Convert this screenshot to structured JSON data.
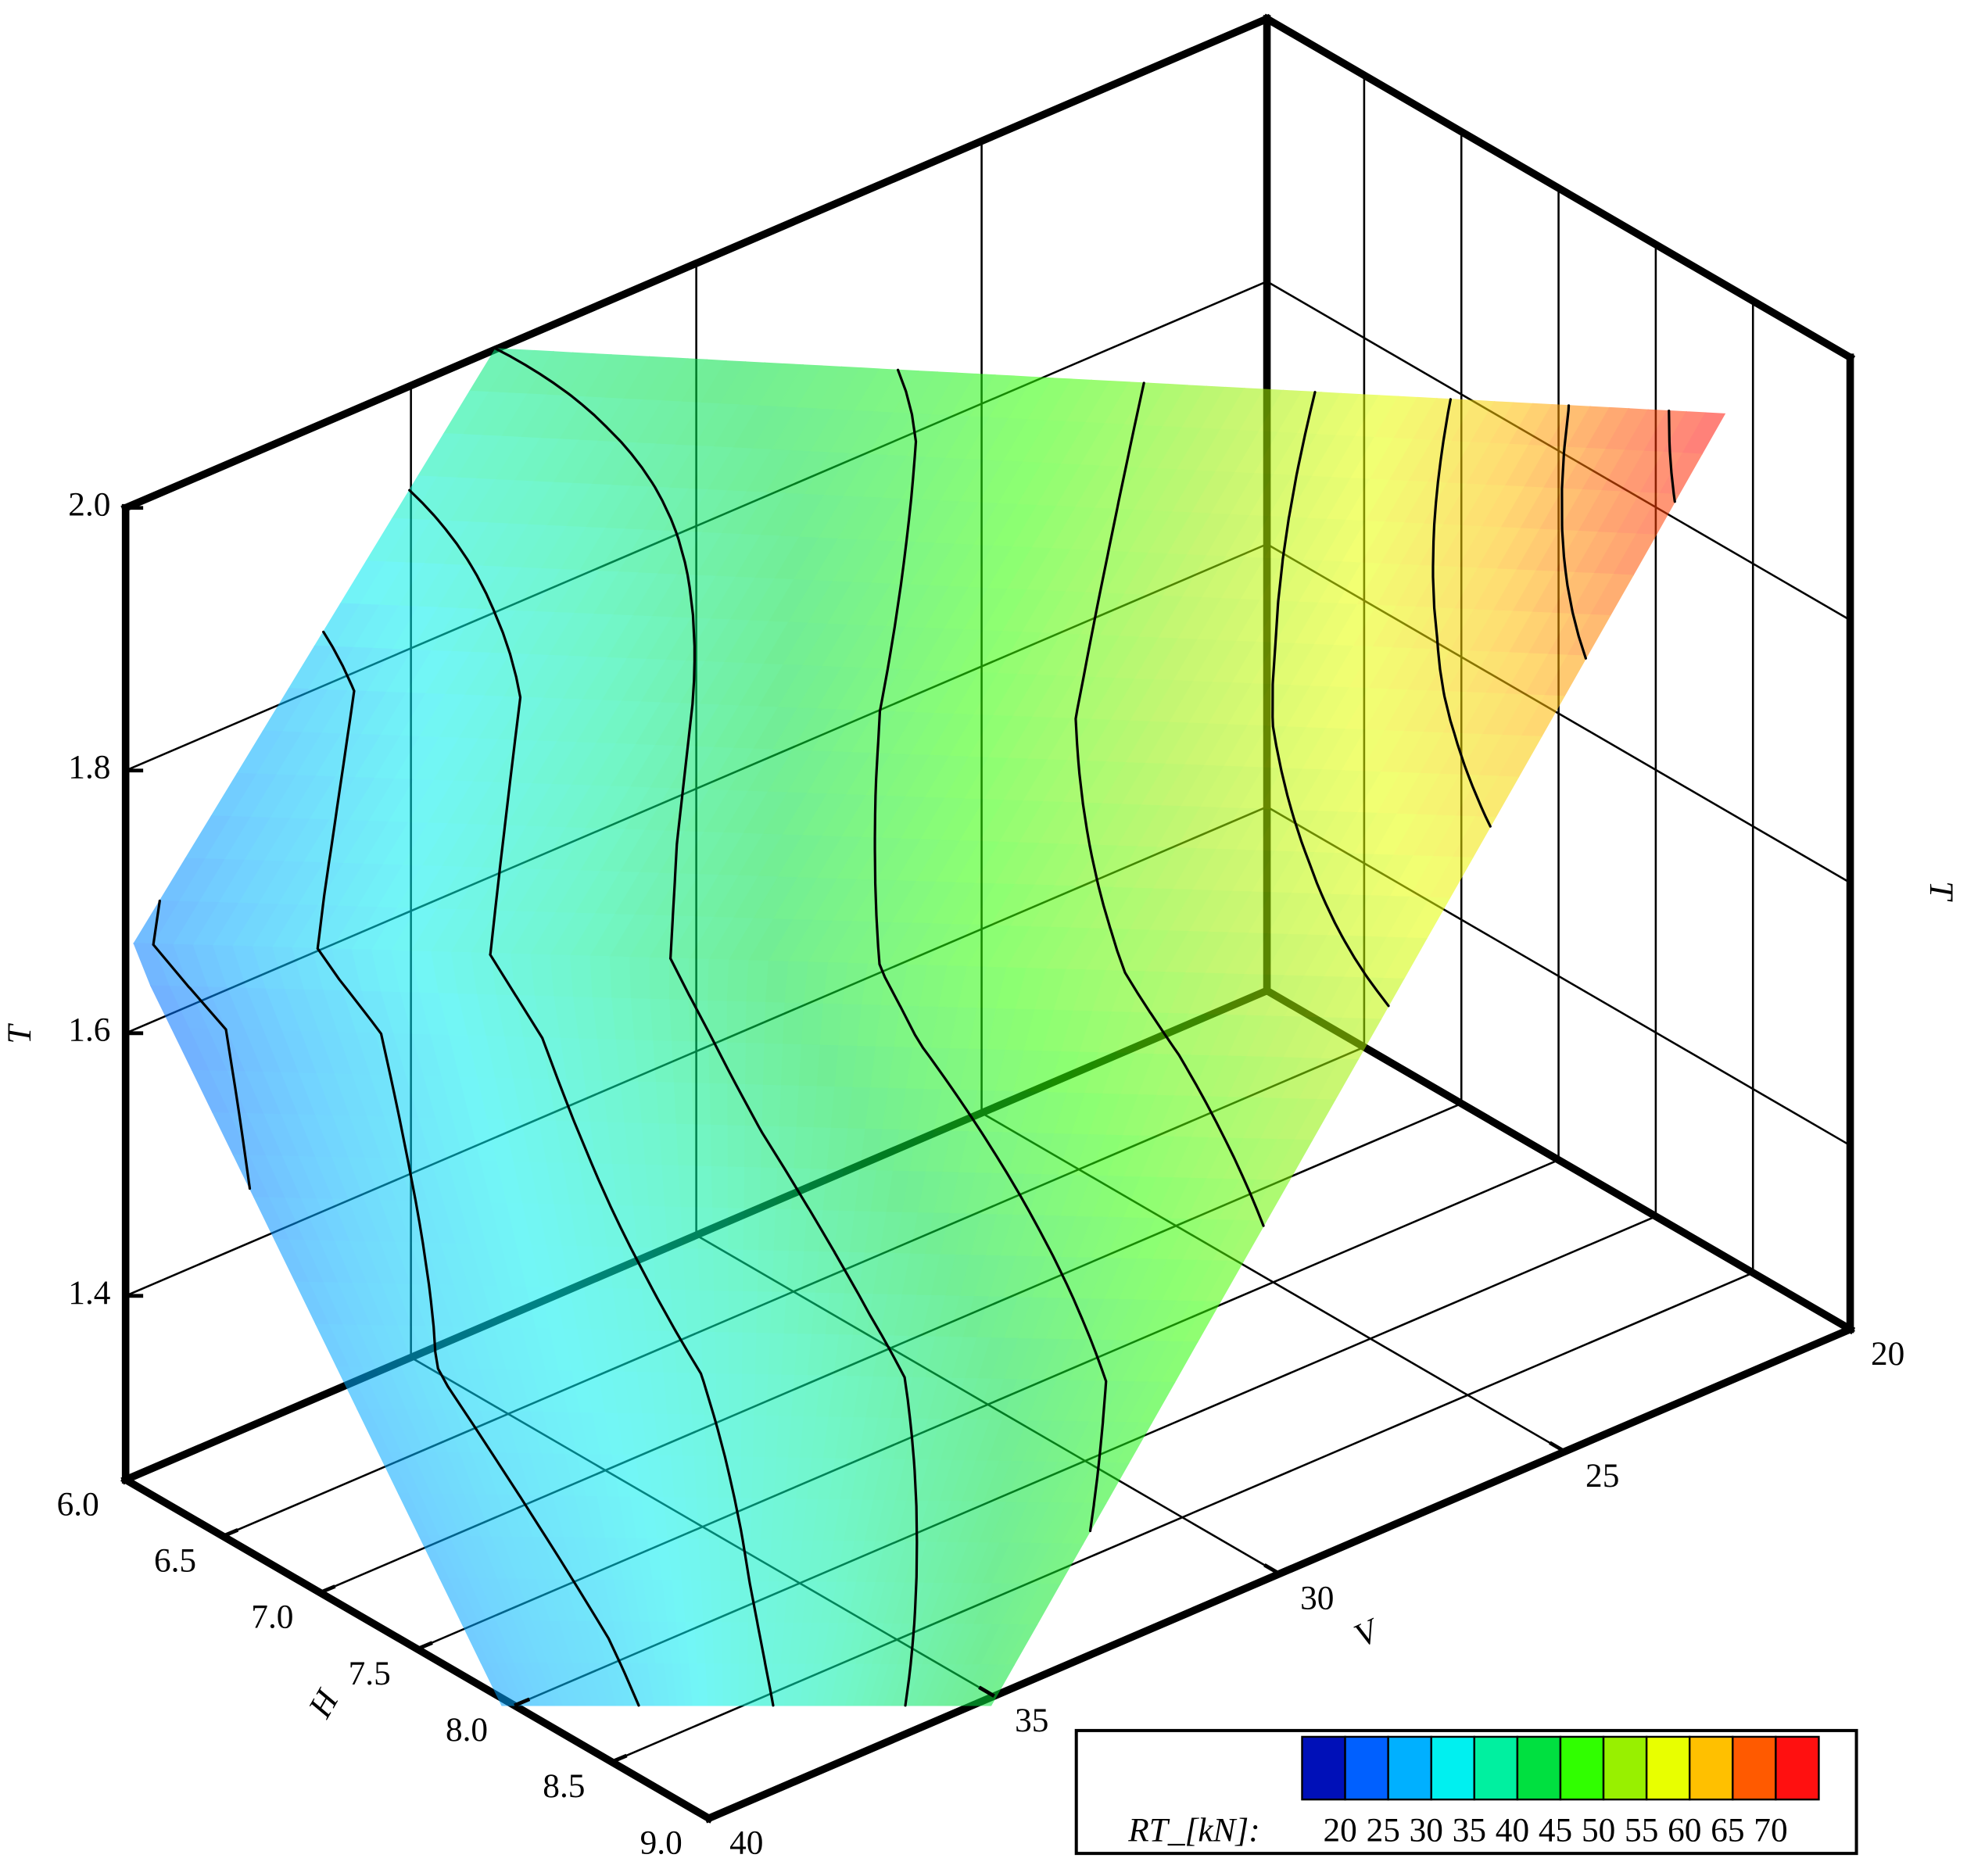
{
  "chart_data": {
    "type": "surface3d",
    "x_label": "H",
    "y_label": "V",
    "z_label": "T",
    "xlim": [
      6,
      9
    ],
    "xticks": [
      {
        "value": 6,
        "label": "6.0"
      },
      6.5,
      {
        "value": 7,
        "label": "7.0"
      },
      7.5,
      {
        "value": 8,
        "label": "8.0"
      },
      8.5,
      {
        "value": 9,
        "label": "9.0"
      }
    ],
    "ylim": [
      20,
      40
    ],
    "yticks": [
      20,
      25,
      30,
      35,
      40
    ],
    "zlim": [
      1.26,
      2.0
    ],
    "zticks": [
      1.4,
      1.6,
      1.8,
      {
        "value": 2,
        "label": "2.0"
      }
    ],
    "grid": true,
    "colorbar": {
      "title": "RT_[kN]:",
      "levels": [
        20,
        25,
        30,
        35,
        40,
        45,
        50,
        55,
        60,
        65,
        70
      ],
      "colors": [
        "#0010b8",
        "#0060ff",
        "#00b0ff",
        "#00f0f0",
        "#00f0a0",
        "#00e040",
        "#30ff00",
        "#98f000",
        "#e8ff00",
        "#ffc000",
        "#ff5a00",
        "#ff1010"
      ]
    },
    "surface": {
      "values": [
        [
          40,
          41.9,
          43.7,
          45.8,
          49.1,
          53.2,
          58.6,
          65.1,
          72.8
        ],
        [
          28,
          32.8,
          37.4,
          41.9,
          45.9,
          49.9,
          53.8,
          58,
          62.5
        ],
        [
          23.2,
          28.1,
          32.7,
          37.3,
          41.4,
          44.8,
          47.7,
          50.6,
          53.5
        ],
        [
          27,
          30.1,
          32,
          33.9,
          36.2,
          38.9,
          41.5,
          44.1,
          46.7
        ],
        [
          26.5,
          28.2,
          29.5,
          31.6,
          34.3,
          35.9,
          38.5,
          41,
          43
        ]
      ]
    }
  }
}
